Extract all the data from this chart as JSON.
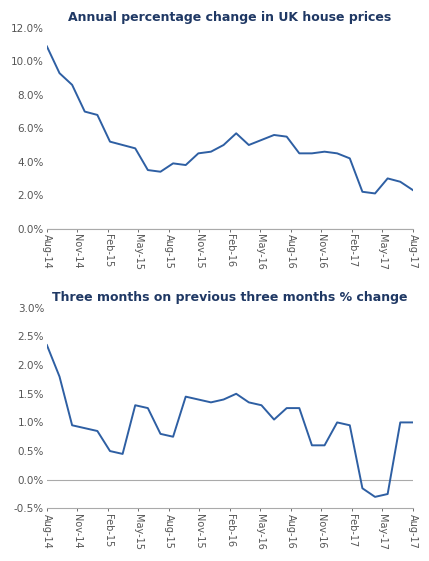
{
  "title1": "Annual percentage change in UK house prices",
  "title2": "Three months on previous three months % change",
  "x_labels": [
    "Aug-14",
    "Nov-14",
    "Feb-15",
    "May-15",
    "Aug-15",
    "Nov-15",
    "Feb-16",
    "May-16",
    "Aug-16",
    "Nov-16",
    "Feb-17",
    "May-17",
    "Aug-17"
  ],
  "chart1_values": [
    10.9,
    9.3,
    8.6,
    7.0,
    6.8,
    5.2,
    5.0,
    4.8,
    3.5,
    3.4,
    3.9,
    3.8,
    4.5,
    4.6,
    5.0,
    5.7,
    5.0,
    5.3,
    5.6,
    5.5,
    4.5,
    4.5,
    4.6,
    4.5,
    4.2,
    2.2,
    2.1,
    3.0,
    2.8,
    2.3
  ],
  "chart2_values": [
    2.35,
    1.8,
    0.95,
    0.9,
    0.85,
    0.5,
    0.45,
    1.3,
    1.25,
    0.8,
    0.75,
    1.45,
    1.4,
    1.35,
    1.4,
    1.5,
    1.35,
    1.3,
    1.05,
    1.25,
    1.25,
    0.6,
    0.6,
    1.0,
    0.95,
    -0.15,
    -0.3,
    -0.25,
    1.0,
    1.0
  ],
  "line_color": "#2E5FA3",
  "background_color": "#ffffff",
  "axis_color": "#aaaaaa",
  "title_color": "#1F3864",
  "chart1_ylim": [
    0.0,
    0.12
  ],
  "chart1_yticks": [
    0.0,
    0.02,
    0.04,
    0.06,
    0.08,
    0.1,
    0.12
  ],
  "chart2_ylim": [
    -0.005,
    0.03
  ],
  "chart2_yticks": [
    -0.005,
    0.0,
    0.005,
    0.01,
    0.015,
    0.02,
    0.025,
    0.03
  ],
  "n_points": 30
}
